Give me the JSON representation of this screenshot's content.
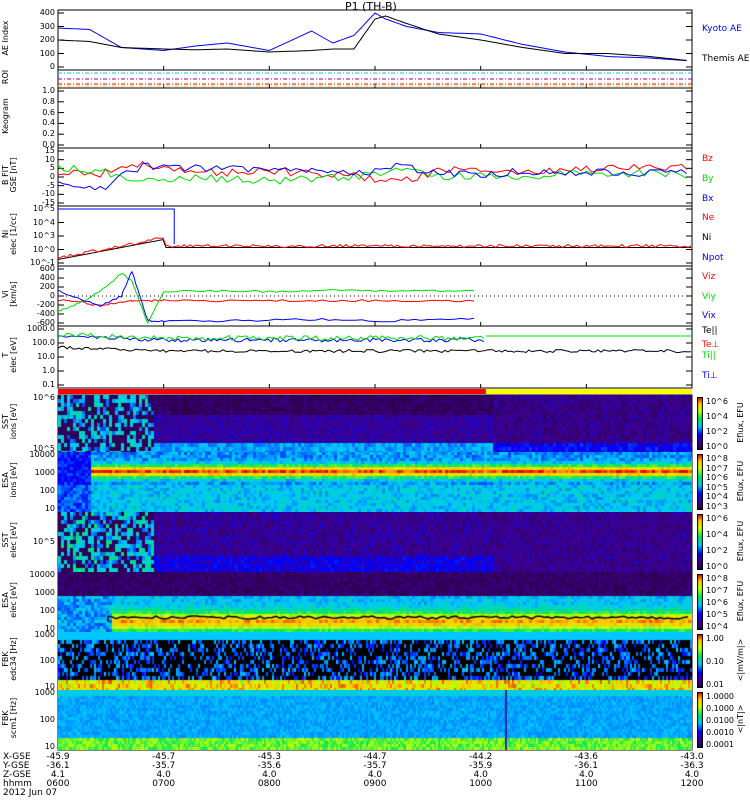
{
  "title": "P1 (TH-B)",
  "chart_data": [
    {
      "type": "line",
      "name": "ae",
      "ylabel": "AE Index",
      "ylim": [
        0,
        400
      ],
      "yticks": [
        "400",
        "300",
        "200",
        "100",
        "0"
      ],
      "x": [
        6.0,
        6.3,
        6.6,
        7.0,
        7.3,
        7.6,
        8.0,
        8.4,
        8.6,
        8.8,
        9.0,
        9.1,
        9.3,
        9.6,
        10.0,
        10.4,
        10.8,
        11.2,
        11.6,
        12.0
      ],
      "series": [
        {
          "name": "Kyoto AE",
          "color": "#0000ff",
          "values": [
            280,
            270,
            150,
            130,
            160,
            180,
            130,
            260,
            180,
            230,
            380,
            340,
            290,
            250,
            240,
            170,
            120,
            90,
            80,
            60
          ]
        },
        {
          "name": "Themis AE",
          "color": "#000000",
          "values": [
            200,
            190,
            150,
            140,
            135,
            140,
            120,
            130,
            140,
            140,
            340,
            360,
            310,
            240,
            200,
            150,
            110,
            110,
            90,
            60
          ]
        }
      ]
    },
    {
      "type": "line",
      "name": "roi",
      "ylabel": "ROI"
    },
    {
      "type": "line",
      "name": "keogram",
      "ylabel": "Keogram",
      "ylim": [
        0,
        1
      ],
      "yticks": [
        "1.0",
        "0.8",
        "0.6",
        "0.4",
        "0.2",
        "0.0"
      ]
    },
    {
      "type": "line",
      "name": "bfit",
      "ylabel": "B FIT",
      "units": "GSE [nT]",
      "ylim": [
        -15,
        15
      ],
      "yticks": [
        "15",
        "10",
        "5",
        "0",
        "-5",
        "-10",
        "-15"
      ],
      "x": [
        6.0,
        6.4,
        6.8,
        7.2,
        7.6,
        8.0,
        8.4,
        8.8,
        9.2,
        9.6,
        10.0,
        10.4,
        10.8,
        11.2,
        11.6,
        12.0
      ],
      "series": [
        {
          "name": "Bz",
          "color": "#ff0000",
          "values": [
            3,
            2,
            6,
            4,
            2,
            3,
            2,
            1,
            -3,
            3,
            4,
            3,
            4,
            4,
            5,
            5
          ]
        },
        {
          "name": "By",
          "color": "#00dd00",
          "values": [
            5,
            3,
            -2,
            0,
            -1,
            -2,
            -1,
            0,
            4,
            0,
            1,
            0,
            2,
            1,
            2,
            1
          ]
        },
        {
          "name": "Bx",
          "color": "#0000ff",
          "values": [
            -3,
            -6,
            6,
            5,
            4,
            5,
            3,
            1,
            6,
            2,
            1,
            3,
            1,
            3,
            2,
            3
          ]
        }
      ]
    },
    {
      "type": "line",
      "name": "density",
      "ylabel": "Ni",
      "units": "elec [1/cc]",
      "yscale": "log",
      "yticks": [
        "10^5",
        "10^4",
        "10^3",
        "10^0",
        "10^-1"
      ],
      "series": [
        {
          "name": "Ne",
          "color": "#ff0000"
        },
        {
          "name": "Ni",
          "color": "#000000"
        },
        {
          "name": "Npot",
          "color": "#0000ff"
        }
      ]
    },
    {
      "type": "line",
      "name": "velocity",
      "ylabel": "Vi",
      "units": "[km/s]",
      "ylim": [
        -600,
        600
      ],
      "yticks": [
        "600",
        "400",
        "200",
        "0",
        "-200",
        "-400",
        "-600"
      ],
      "x": [
        6.0,
        6.2,
        6.4,
        6.6,
        6.7,
        6.85,
        7.0,
        7.5,
        8.0,
        8.5,
        9.0,
        9.5,
        10.0
      ],
      "series": [
        {
          "name": "Viz",
          "color": "#ff0000",
          "values": [
            -80,
            -120,
            -200,
            -120,
            -100,
            -100,
            -90,
            -100,
            -90,
            -100,
            -90,
            -100,
            -90
          ]
        },
        {
          "name": "Viy",
          "color": "#00dd00",
          "values": [
            -300,
            -150,
            100,
            450,
            300,
            -550,
            100,
            100,
            90,
            110,
            100,
            100,
            110
          ]
        },
        {
          "name": "Vix",
          "color": "#0000ff",
          "values": [
            100,
            -50,
            -200,
            0,
            500,
            -500,
            -500,
            -500,
            -480,
            -470,
            -500,
            -480,
            -450
          ]
        }
      ]
    },
    {
      "type": "line",
      "name": "temperature",
      "ylabel": "T",
      "units": "elec [eV]",
      "yscale": "log",
      "yticks": [
        "1000.0",
        "100.0",
        "10.0",
        "1.0",
        "0.1"
      ],
      "series": [
        {
          "name": "Te||",
          "color": "#000000"
        },
        {
          "name": "Te⊥",
          "color": "#ff0000"
        },
        {
          "name": "Ti||",
          "color": "#00dd00"
        },
        {
          "name": "Ti⊥",
          "color": "#0000ff"
        }
      ]
    },
    {
      "type": "heatmap",
      "name": "sst-ions",
      "ylabel": "SST",
      "units": "ions [eV]",
      "yticks": [
        "10^6",
        "10^5"
      ],
      "colorbar_label": "Eflux, EFU",
      "colorbar_ticks": [
        "10^6",
        "10^4",
        "10^2",
        "10^0"
      ]
    },
    {
      "type": "heatmap",
      "name": "esa-ions",
      "ylabel": "ESA",
      "units": "ions [eV]",
      "yticks": [
        "10000",
        "1000",
        "100",
        "10"
      ],
      "colorbar_label": "Eflux, EFU",
      "colorbar_ticks": [
        "10^8",
        "10^7",
        "10^6",
        "10^5",
        "10^4",
        "10^3"
      ]
    },
    {
      "type": "heatmap",
      "name": "sst-elec",
      "ylabel": "SST",
      "units": "elec [eV]",
      "yticks": [
        "10^5"
      ],
      "colorbar_label": "Eflux, EFU",
      "colorbar_ticks": [
        "10^6",
        "10^4",
        "10^2",
        "10^0"
      ]
    },
    {
      "type": "heatmap",
      "name": "esa-elec",
      "ylabel": "ESA",
      "units": "elec [eV]",
      "yticks": [
        "10000",
        "1000",
        "100",
        "10"
      ],
      "colorbar_label": "Eflux, EFU",
      "colorbar_ticks": [
        "10^8",
        "10^7",
        "10^6",
        "10^5",
        "10^4"
      ]
    },
    {
      "type": "heatmap",
      "name": "fbk-edc34",
      "ylabel": "FBK",
      "units": "edc34 [Hz]",
      "yticks": [
        "1000",
        "100",
        "10"
      ],
      "colorbar_label": "<|mV/m|>",
      "colorbar_ticks": [
        "1.00",
        "0.10",
        "0.01"
      ]
    },
    {
      "type": "heatmap",
      "name": "fbk-scm1",
      "ylabel": "FBK",
      "units": "scm1 [Hz]",
      "yticks": [
        "1000",
        "100",
        "10"
      ],
      "colorbar_label": "<|nT|>",
      "colorbar_ticks": [
        "1.0000",
        "0.1000",
        "0.0100",
        "0.0010",
        "0.0001"
      ]
    }
  ],
  "xaxis": {
    "row_labels": [
      "X-GSE",
      "Y-GSE",
      "Z-GSE",
      "hhmm"
    ],
    "date": "2012 Jun 07",
    "ticks": [
      {
        "x": "-45.9",
        "y": "-36.1",
        "z": "4.1",
        "t": "0600"
      },
      {
        "x": "-45.7",
        "y": "-35.7",
        "z": "4.0",
        "t": "0700"
      },
      {
        "x": "-45.3",
        "y": "-35.6",
        "z": "4.0",
        "t": "0800"
      },
      {
        "x": "-44.7",
        "y": "-35.7",
        "z": "4.0",
        "t": "0900"
      },
      {
        "x": "-44.2",
        "y": "-35.9",
        "z": "4.0",
        "t": "1000"
      },
      {
        "x": "-43.6",
        "y": "-36.1",
        "z": "4.0",
        "t": "1100"
      },
      {
        "x": "-43.0",
        "y": "-36.3",
        "z": "4.0",
        "t": "1200"
      }
    ]
  }
}
